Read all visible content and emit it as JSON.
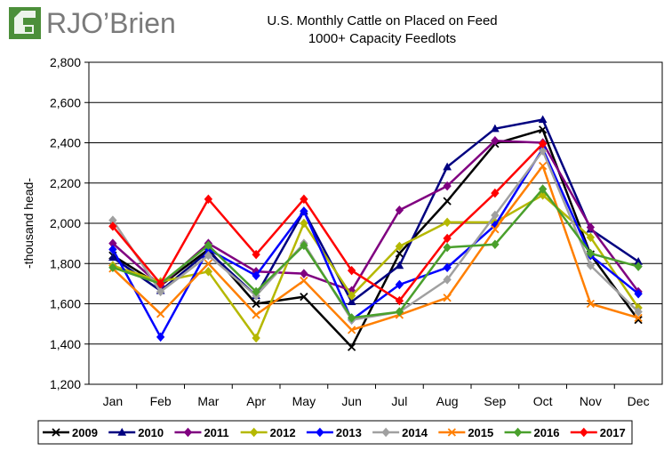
{
  "logo": {
    "text": "RJO’Brien"
  },
  "chart_data": {
    "type": "line",
    "title": "U.S. Monthly Cattle on Placed on Feed",
    "subtitle": "1000+ Capacity Feedlots",
    "xlabel": "",
    "ylabel": "-thousand head-",
    "ylim": [
      1200,
      2800
    ],
    "yticks": [
      "1,200",
      "1,400",
      "1,600",
      "1,800",
      "2,000",
      "2,200",
      "2,400",
      "2,600",
      "2,800"
    ],
    "categories": [
      "Jan",
      "Feb",
      "Mar",
      "Apr",
      "May",
      "Jun",
      "Jul",
      "Aug",
      "Sep",
      "Oct",
      "Nov",
      "Dec"
    ],
    "grid": "horizontal",
    "legend": "bottom",
    "series": [
      {
        "name": "2009",
        "color": "#000000",
        "marker": "x",
        "values": [
          1840,
          1690,
          1870,
          1600,
          1635,
          1385,
          1850,
          2110,
          2395,
          2465,
          1845,
          1520
        ]
      },
      {
        "name": "2010",
        "color": "#000080",
        "marker": "triangle",
        "values": [
          1830,
          1665,
          1860,
          1640,
          2060,
          1610,
          1790,
          2280,
          2470,
          2515,
          1970,
          1810
        ]
      },
      {
        "name": "2011",
        "color": "#800080",
        "marker": "diamond",
        "values": [
          1900,
          1690,
          1900,
          1760,
          1750,
          1665,
          2065,
          2185,
          2410,
          2400,
          1980,
          1660
        ]
      },
      {
        "name": "2012",
        "color": "#b5b800",
        "marker": "diamond",
        "values": [
          1790,
          1710,
          1760,
          1430,
          2000,
          1640,
          1885,
          2005,
          2005,
          2140,
          1930,
          1580
        ]
      },
      {
        "name": "2013",
        "color": "#0000ff",
        "marker": "diamond",
        "values": [
          1870,
          1435,
          1870,
          1740,
          2060,
          1520,
          1695,
          1780,
          1990,
          2370,
          1840,
          1650
        ]
      },
      {
        "name": "2014",
        "color": "#a0a0a0",
        "marker": "diamond",
        "values": [
          2015,
          1660,
          1840,
          1640,
          1900,
          1520,
          1560,
          1720,
          2040,
          2360,
          1790,
          1560
        ]
      },
      {
        "name": "2015",
        "color": "#ff7f00",
        "marker": "x",
        "values": [
          1775,
          1550,
          1800,
          1545,
          1715,
          1470,
          1545,
          1630,
          1970,
          2285,
          1600,
          1530
        ]
      },
      {
        "name": "2016",
        "color": "#4aa02c",
        "marker": "diamond",
        "values": [
          1780,
          1700,
          1890,
          1660,
          1890,
          1530,
          1560,
          1880,
          1895,
          2170,
          1850,
          1785
        ]
      },
      {
        "name": "2017",
        "color": "#ff0000",
        "marker": "diamond",
        "values": [
          1985,
          1700,
          2120,
          1845,
          2120,
          1765,
          1615,
          1925,
          2150,
          2395,
          null,
          null
        ]
      }
    ]
  }
}
